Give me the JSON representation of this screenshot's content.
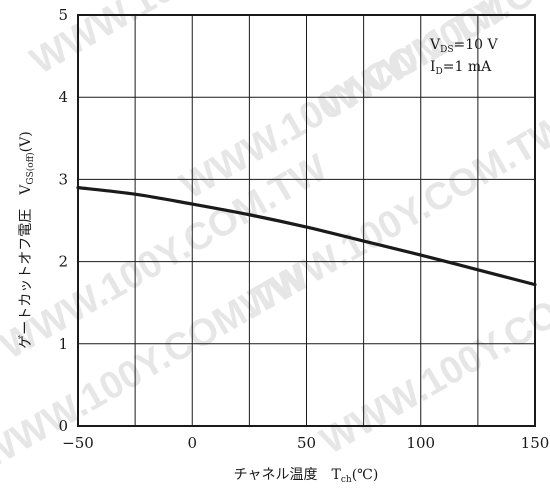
{
  "chart_data": {
    "type": "line",
    "xlabel": {
      "main": "チャネル温度　T",
      "sub": "ch",
      "unit": "(℃)"
    },
    "ylabel": {
      "main": "ゲートカットオフ電圧　V",
      "sub": "GS(off)",
      "unit": "(V)"
    },
    "xlim": [
      -50,
      150
    ],
    "ylim": [
      0,
      5
    ],
    "xticks": [
      -50,
      0,
      50,
      100,
      150
    ],
    "yticks": [
      0,
      1,
      2,
      3,
      4,
      5
    ],
    "grid": true,
    "grid_x": [
      -25,
      0,
      25,
      50,
      75,
      100,
      125
    ],
    "grid_y": [
      1,
      2,
      3,
      4
    ],
    "conditions": [
      {
        "main": "V",
        "sub": "DS",
        "value": "=10  V"
      },
      {
        "main": "I",
        "sub": "D",
        "value": "=1  mA"
      }
    ],
    "series": [
      {
        "x": [
          -50,
          -25,
          0,
          25,
          50,
          75,
          100,
          125,
          150
        ],
        "y": [
          2.9,
          2.82,
          2.7,
          2.57,
          2.42,
          2.25,
          2.08,
          1.9,
          1.72
        ]
      }
    ],
    "watermark": "WWW.100Y.COM.TW",
    "line_color": "#1a1a1a",
    "grid_color": "#1a1a1a"
  }
}
